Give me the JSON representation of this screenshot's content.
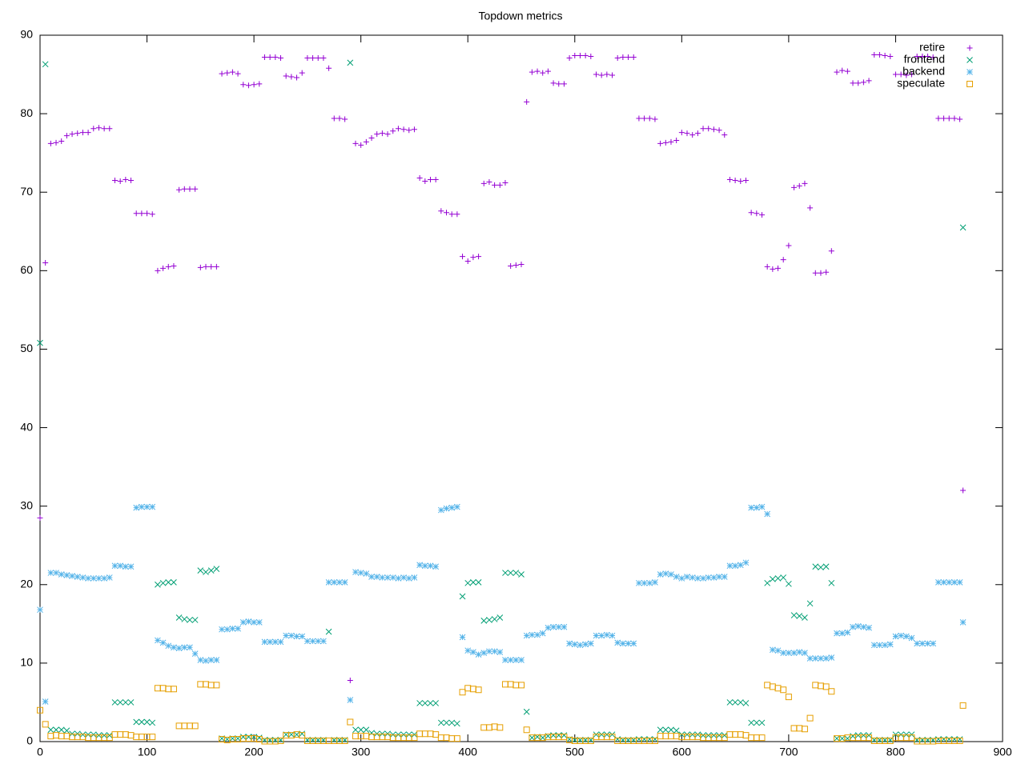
{
  "chart_data": {
    "type": "scatter",
    "title": "Topdown metrics",
    "x": [
      0,
      5,
      10,
      15,
      20,
      25,
      30,
      35,
      40,
      45,
      50,
      55,
      60,
      65,
      70,
      75,
      80,
      85,
      90,
      95,
      100,
      105,
      110,
      115,
      120,
      125,
      130,
      135,
      140,
      145,
      150,
      155,
      160,
      165,
      170,
      175,
      180,
      185,
      190,
      195,
      200,
      205,
      210,
      215,
      220,
      225,
      230,
      235,
      240,
      245,
      250,
      255,
      260,
      265,
      270,
      275,
      280,
      285,
      290,
      295,
      300,
      305,
      310,
      315,
      320,
      325,
      330,
      335,
      340,
      345,
      350,
      355,
      360,
      365,
      370,
      375,
      380,
      385,
      390,
      395,
      400,
      405,
      410,
      415,
      420,
      425,
      430,
      435,
      440,
      445,
      450,
      455,
      460,
      465,
      470,
      475,
      480,
      485,
      490,
      495,
      500,
      505,
      510,
      515,
      520,
      525,
      530,
      535,
      540,
      545,
      550,
      555,
      560,
      565,
      570,
      575,
      580,
      585,
      590,
      595,
      600,
      605,
      610,
      615,
      620,
      625,
      630,
      635,
      640,
      645,
      650,
      655,
      660,
      665,
      670,
      675,
      680,
      685,
      690,
      695,
      700,
      705,
      710,
      715,
      720,
      725,
      730,
      735,
      740,
      745,
      750,
      755,
      760,
      765,
      770,
      775,
      780,
      785,
      790,
      795,
      800,
      805,
      810,
      815,
      820,
      825,
      830,
      835,
      840,
      845,
      850,
      855,
      860,
      863
    ],
    "series": [
      {
        "name": "retire",
        "color": "#9400d3",
        "marker": "plus",
        "values": [
          28.5,
          61,
          76.2,
          76.3,
          76.5,
          77.2,
          77.4,
          77.5,
          77.6,
          77.6,
          78.1,
          78.2,
          78.1,
          78.1,
          71.5,
          71.4,
          71.6,
          71.5,
          67.3,
          67.3,
          67.3,
          67.2,
          60.0,
          60.3,
          60.5,
          60.6,
          70.3,
          70.4,
          70.4,
          70.4,
          60.4,
          60.5,
          60.5,
          60.5,
          85.1,
          85.2,
          85.3,
          85.1,
          83.7,
          83.6,
          83.7,
          83.8,
          87.2,
          87.2,
          87.2,
          87.1,
          84.8,
          84.7,
          84.6,
          85.2,
          87.1,
          87.1,
          87.1,
          87.1,
          85.8,
          79.4,
          79.4,
          79.3,
          7.8,
          76.2,
          76.0,
          76.4,
          76.9,
          77.4,
          77.5,
          77.4,
          77.8,
          78.1,
          78,
          77.9,
          78,
          71.8,
          71.4,
          71.6,
          71.6,
          67.6,
          67.4,
          67.2,
          67.2,
          61.8,
          61.2,
          61.7,
          61.8,
          71.1,
          71.3,
          70.9,
          70.9,
          71.2,
          60.6,
          60.7,
          60.8,
          81.5,
          85.3,
          85.4,
          85.2,
          85.4,
          83.9,
          83.8,
          83.8,
          87.1,
          87.4,
          87.4,
          87.4,
          87.3,
          85,
          84.9,
          85,
          84.9,
          87.1,
          87.2,
          87.2,
          87.2,
          79.4,
          79.4,
          79.4,
          79.3,
          76.2,
          76.3,
          76.4,
          76.6,
          77.6,
          77.5,
          77.3,
          77.5,
          78.1,
          78.1,
          78,
          77.9,
          77.3,
          71.6,
          71.5,
          71.4,
          71.5,
          67.4,
          67.3,
          67.1,
          60.5,
          60.2,
          60.3,
          61.4,
          63.2,
          70.6,
          70.8,
          71.1,
          68,
          59.7,
          59.7,
          59.8,
          62.5,
          85.3,
          85.5,
          85.4,
          83.9,
          83.9,
          84,
          84.2,
          87.5,
          87.5,
          87.4,
          87.3,
          85,
          85,
          84.9,
          85,
          87.3,
          87.3,
          87.3,
          87.2,
          79.4,
          79.4,
          79.4,
          79.4,
          79.3,
          32
        ]
      },
      {
        "name": "frontend",
        "color": "#009e73",
        "marker": "cross",
        "values": [
          50.8,
          86.3,
          1.5,
          1.5,
          1.5,
          1.4,
          1,
          1,
          0.9,
          0.9,
          0.9,
          0.8,
          0.8,
          0.8,
          5,
          5,
          5,
          5,
          2.5,
          2.5,
          2.5,
          2.4,
          20,
          20.2,
          20.3,
          20.3,
          15.8,
          15.6,
          15.5,
          15.5,
          21.8,
          21.6,
          21.8,
          22,
          0.4,
          0.3,
          0.4,
          0.4,
          0.6,
          0.6,
          0.6,
          0.5,
          0.2,
          0.2,
          0.2,
          0.2,
          0.9,
          0.9,
          0.9,
          1,
          0.2,
          0.2,
          0.2,
          0.2,
          14,
          0.2,
          0.2,
          0.2,
          86.5,
          1.5,
          1.5,
          1.5,
          1.1,
          1,
          1,
          1,
          0.9,
          0.9,
          0.9,
          0.9,
          0.9,
          4.9,
          4.9,
          4.9,
          4.9,
          2.4,
          2.4,
          2.4,
          2.3,
          18.5,
          20.2,
          20.3,
          20.3,
          15.4,
          15.5,
          15.6,
          15.8,
          21.5,
          21.5,
          21.5,
          21.3,
          3.8,
          0.5,
          0.6,
          0.5,
          0.7,
          0.8,
          0.8,
          0.8,
          0.3,
          0.2,
          0.2,
          0.2,
          0.2,
          0.9,
          0.9,
          0.9,
          0.9,
          0.3,
          0.2,
          0.2,
          0.2,
          0.3,
          0.3,
          0.3,
          0.3,
          1.5,
          1.5,
          1.5,
          1.4,
          0.9,
          0.9,
          0.9,
          0.9,
          0.8,
          0.8,
          0.8,
          0.8,
          0.8,
          5,
          5,
          5,
          4.9,
          2.4,
          2.4,
          2.4,
          20.2,
          20.7,
          20.8,
          20.9,
          20.1,
          16.1,
          16,
          15.8,
          17.6,
          22.3,
          22.2,
          22.3,
          20.2,
          0.4,
          0.4,
          0.4,
          0.7,
          0.8,
          0.8,
          0.8,
          0.2,
          0.2,
          0.2,
          0.2,
          0.9,
          0.9,
          0.9,
          0.9,
          0.2,
          0.2,
          0.2,
          0.2,
          0.3,
          0.3,
          0.3,
          0.3,
          0.3,
          65.5
        ]
      },
      {
        "name": "backend",
        "color": "#56b4e9",
        "marker": "star",
        "values": [
          16.8,
          5.1,
          21.5,
          21.5,
          21.3,
          21.2,
          21.1,
          21,
          20.9,
          20.8,
          20.8,
          20.8,
          20.8,
          20.9,
          22.4,
          22.4,
          22.3,
          22.3,
          29.8,
          29.9,
          29.9,
          29.9,
          12.9,
          12.6,
          12.2,
          12,
          11.9,
          12,
          12,
          11.2,
          10.4,
          10.3,
          10.4,
          10.4,
          14.3,
          14.3,
          14.4,
          14.4,
          15.2,
          15.3,
          15.2,
          15.2,
          12.7,
          12.7,
          12.7,
          12.7,
          13.5,
          13.5,
          13.4,
          13.4,
          12.8,
          12.8,
          12.8,
          12.8,
          20.3,
          20.3,
          20.3,
          20.3,
          5.3,
          21.6,
          21.5,
          21.4,
          21,
          21,
          20.9,
          20.9,
          20.9,
          20.8,
          20.9,
          20.8,
          20.9,
          22.5,
          22.4,
          22.4,
          22.3,
          29.5,
          29.7,
          29.8,
          29.9,
          13.3,
          11.6,
          11.4,
          11.1,
          11.3,
          11.5,
          11.5,
          11.4,
          10.4,
          10.4,
          10.4,
          10.4,
          13.5,
          13.6,
          13.6,
          13.8,
          14.5,
          14.6,
          14.6,
          14.6,
          12.5,
          12.4,
          12.3,
          12.4,
          12.5,
          13.5,
          13.5,
          13.6,
          13.5,
          12.6,
          12.5,
          12.5,
          12.5,
          20.2,
          20.2,
          20.2,
          20.3,
          21.3,
          21.4,
          21.3,
          21,
          20.8,
          21,
          20.9,
          20.8,
          20.8,
          20.9,
          20.9,
          21,
          21,
          22.4,
          22.4,
          22.5,
          22.8,
          29.8,
          29.8,
          29.9,
          29,
          11.7,
          11.6,
          11.3,
          11.3,
          11.3,
          11.4,
          11.3,
          10.6,
          10.6,
          10.6,
          10.6,
          10.7,
          13.8,
          13.8,
          13.9,
          14.6,
          14.7,
          14.6,
          14.5,
          12.3,
          12.3,
          12.3,
          12.4,
          13.4,
          13.5,
          13.4,
          13.2,
          12.5,
          12.5,
          12.5,
          12.5,
          20.3,
          20.3,
          20.3,
          20.3,
          20.3,
          15.2
        ]
      },
      {
        "name": "speculate",
        "color": "#e69f00",
        "marker": "square",
        "values": [
          4,
          2.2,
          0.7,
          0.8,
          0.7,
          0.7,
          0.6,
          0.6,
          0.6,
          0.5,
          0.5,
          0.5,
          0.5,
          0.5,
          0.9,
          0.9,
          0.9,
          0.8,
          0.6,
          0.6,
          0.6,
          0.6,
          6.8,
          6.8,
          6.7,
          6.7,
          2,
          2,
          2,
          2,
          7.3,
          7.3,
          7.2,
          7.2,
          0.3,
          0.2,
          0.3,
          0.3,
          0.4,
          0.4,
          0.4,
          0.3,
          0.05,
          0.05,
          0.05,
          0.1,
          0.8,
          0.8,
          0.9,
          0.8,
          0.1,
          0.1,
          0.1,
          0.1,
          0.1,
          0.1,
          0.1,
          0.1,
          2.5,
          0.7,
          0.7,
          0.7,
          0.6,
          0.6,
          0.6,
          0.6,
          0.5,
          0.5,
          0.5,
          0.5,
          0.5,
          1,
          1,
          1,
          0.9,
          0.5,
          0.5,
          0.4,
          0.4,
          6.3,
          6.8,
          6.7,
          6.6,
          1.8,
          1.8,
          1.9,
          1.8,
          7.3,
          7.3,
          7.2,
          7.2,
          1.5,
          0.5,
          0.5,
          0.5,
          0.6,
          0.6,
          0.6,
          0.6,
          0.2,
          0.1,
          0.1,
          0.1,
          0.1,
          0.6,
          0.6,
          0.6,
          0.6,
          0.1,
          0.1,
          0.1,
          0.1,
          0.1,
          0.1,
          0.1,
          0.1,
          0.7,
          0.7,
          0.7,
          0.7,
          0.6,
          0.6,
          0.6,
          0.6,
          0.5,
          0.5,
          0.5,
          0.5,
          0.5,
          0.9,
          0.9,
          0.9,
          0.8,
          0.5,
          0.5,
          0.5,
          7.2,
          7,
          6.8,
          6.6,
          5.7,
          1.7,
          1.7,
          1.6,
          3,
          7.2,
          7.1,
          7,
          6.4,
          0.4,
          0.4,
          0.5,
          0.5,
          0.5,
          0.5,
          0.5,
          0.1,
          0.1,
          0.1,
          0.1,
          0.5,
          0.5,
          0.5,
          0.5,
          0.05,
          0.05,
          0.05,
          0.05,
          0.1,
          0.1,
          0.1,
          0.1,
          0.1,
          4.6
        ]
      }
    ],
    "xlim": [
      0,
      900
    ],
    "ylim": [
      0,
      90
    ],
    "xticks": [
      0,
      100,
      200,
      300,
      400,
      500,
      600,
      700,
      800,
      900
    ],
    "yticks": [
      0,
      10,
      20,
      30,
      40,
      50,
      60,
      70,
      80,
      90
    ],
    "grid": false,
    "legend": "top-right"
  }
}
